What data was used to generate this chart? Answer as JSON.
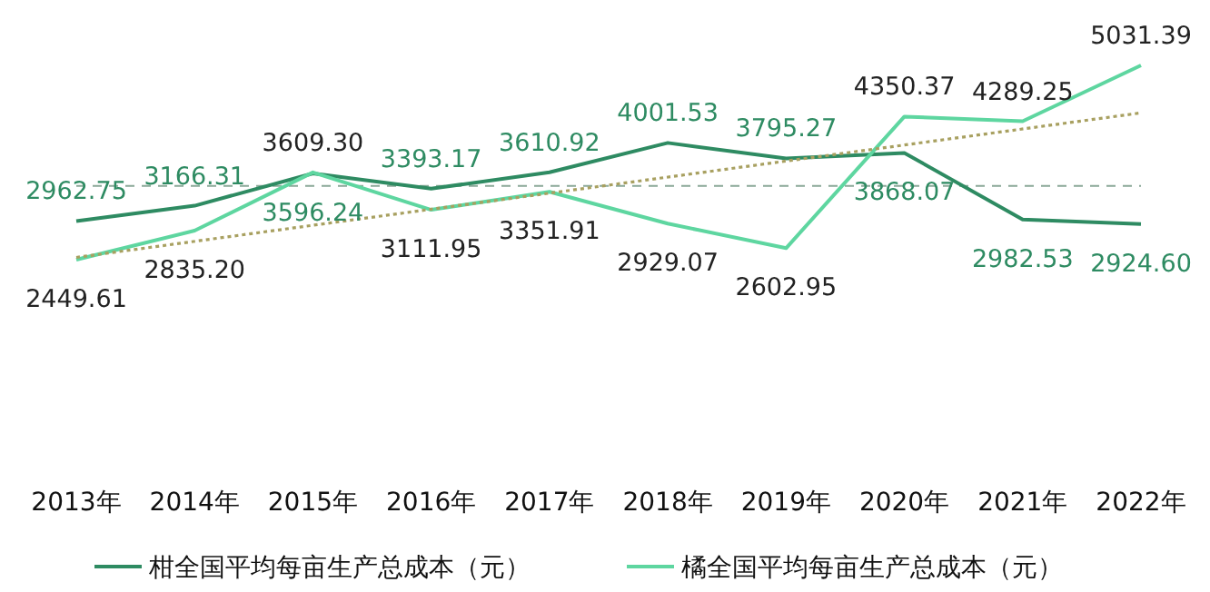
{
  "chart_data": {
    "type": "line",
    "categories": [
      "2013年",
      "2014年",
      "2015年",
      "2016年",
      "2017年",
      "2018年",
      "2019年",
      "2020年",
      "2021年",
      "2022年"
    ],
    "series": [
      {
        "name": "柑全国平均每亩生产总成本（元）",
        "color": "#2e8b62",
        "values": [
          2962.75,
          3166.31,
          3596.24,
          3393.17,
          3610.92,
          4001.53,
          3795.27,
          3868.07,
          2982.53,
          2924.6
        ],
        "value_labels": [
          "2962.75",
          "3166.31",
          "3596.24",
          "3393.17",
          "3610.92",
          "4001.53",
          "3795.27",
          "3868.07",
          "2982.53",
          "2924.60"
        ]
      },
      {
        "name": "橘全国平均每亩生产总成本（元）",
        "color": "#5ed6a0",
        "values": [
          2449.61,
          2835.2,
          3609.3,
          3111.95,
          3351.91,
          2929.07,
          2602.95,
          4350.37,
          4289.25,
          5031.39
        ],
        "value_labels": [
          "2449.61",
          "2835.20",
          "3609.30",
          "3111.95",
          "3351.91",
          "2929.07",
          "2602.95",
          "4350.37",
          "4289.25",
          "5031.39"
        ]
      },
      {
        "type": "line",
        "color": "#a8a060",
        "line_style": "dotted",
        "x": [
          "2013年",
          "2022年"
        ],
        "values": [
          2480,
          4400
        ]
      }
    ],
    "ref_lines": [
      {
        "axis": "y",
        "value": 3430,
        "color": "#8aa898",
        "line_style": "dashed"
      }
    ],
    "legend": "bottom",
    "marker": "none"
  }
}
